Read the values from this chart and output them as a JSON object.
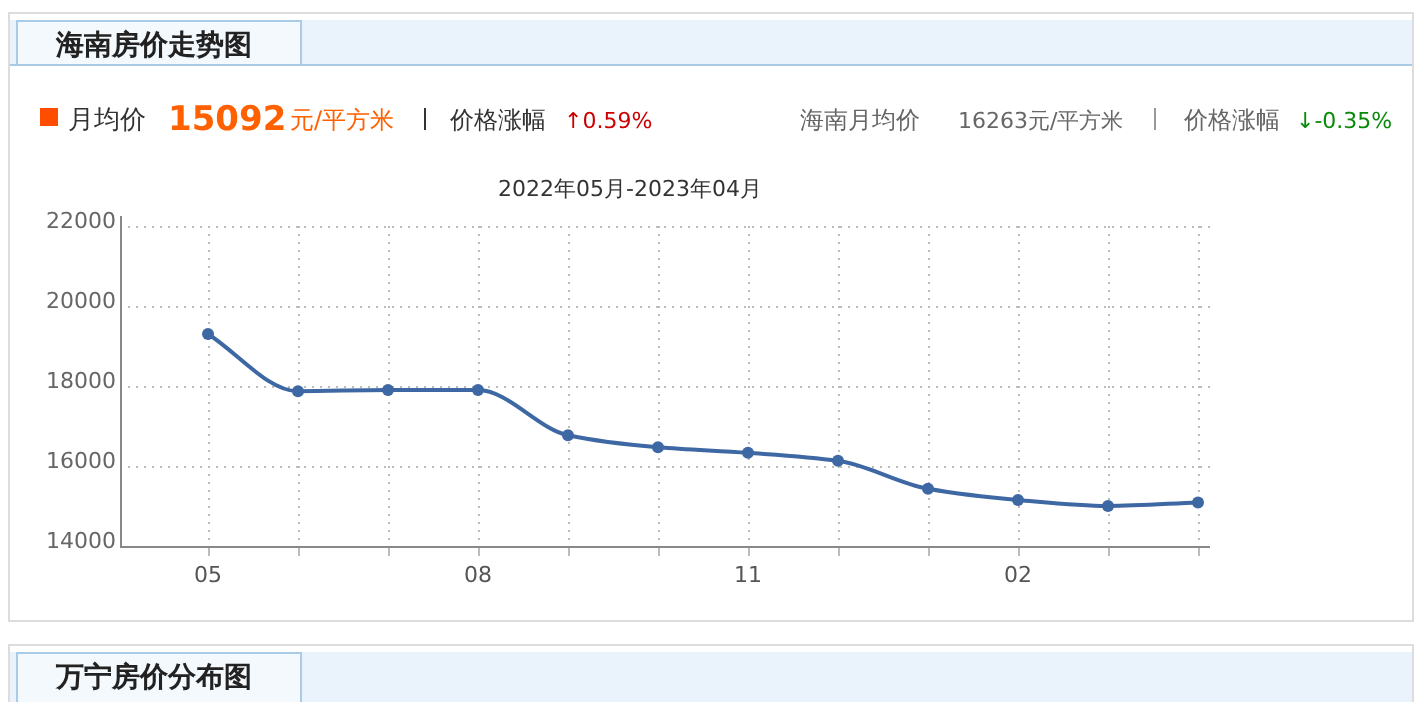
{
  "chart_data": {
    "type": "line",
    "title": "海南房价走势图",
    "subtitle": "2022年05月-2023年04月",
    "categories": [
      "05",
      null,
      null,
      "08",
      null,
      null,
      "11",
      null,
      null,
      "02",
      null,
      null
    ],
    "series": [
      {
        "color": "#3d68a3",
        "values": [
          19300,
          17870,
          17900,
          17900,
          16770,
          16470,
          16330,
          16130,
          15430,
          15150,
          15000,
          15090
        ]
      }
    ],
    "ylim": [
      14000,
      22000
    ],
    "yticks": [
      14000,
      16000,
      18000,
      20000,
      22000
    ],
    "grid": true,
    "marker": "circle",
    "line_style": "solid",
    "annotations": [
      "月均价",
      "15092",
      "元/平方米",
      "价格涨幅",
      "↑0.59%",
      "海南月均价",
      "16263元/平方米",
      "价格涨幅",
      "↓-0.35%",
      "万宁房价分布图"
    ]
  }
}
